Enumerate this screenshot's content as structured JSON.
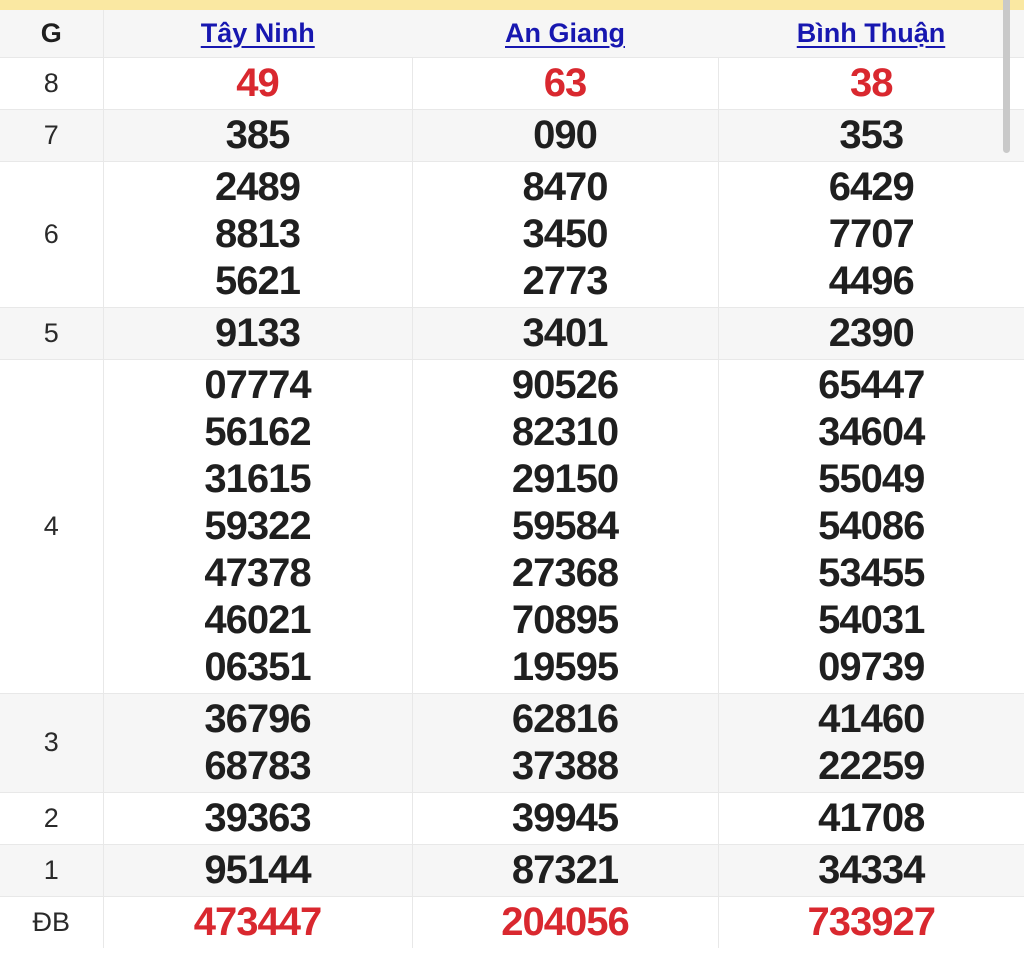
{
  "colors": {
    "banner_yellow": "#fae8a2",
    "link_blue": "#1717b0",
    "accent_red": "#d9282f",
    "text_black": "#1f1f1f",
    "row_alt_bg": "#f6f6f6",
    "border_gray": "#e8e8e8"
  },
  "table": {
    "corner_label": "G",
    "provinces": [
      "Tây Ninh",
      "An Giang",
      "Bình Thuận"
    ],
    "rows": [
      {
        "label": "8",
        "highlight": true,
        "values": [
          [
            "49"
          ],
          [
            "63"
          ],
          [
            "38"
          ]
        ]
      },
      {
        "label": "7",
        "highlight": false,
        "values": [
          [
            "385"
          ],
          [
            "090"
          ],
          [
            "353"
          ]
        ]
      },
      {
        "label": "6",
        "highlight": false,
        "values": [
          [
            "2489",
            "8813",
            "5621"
          ],
          [
            "8470",
            "3450",
            "2773"
          ],
          [
            "6429",
            "7707",
            "4496"
          ]
        ]
      },
      {
        "label": "5",
        "highlight": false,
        "values": [
          [
            "9133"
          ],
          [
            "3401"
          ],
          [
            "2390"
          ]
        ]
      },
      {
        "label": "4",
        "highlight": false,
        "values": [
          [
            "07774",
            "56162",
            "31615",
            "59322",
            "47378",
            "46021",
            "06351"
          ],
          [
            "90526",
            "82310",
            "29150",
            "59584",
            "27368",
            "70895",
            "19595"
          ],
          [
            "65447",
            "34604",
            "55049",
            "54086",
            "53455",
            "54031",
            "09739"
          ]
        ]
      },
      {
        "label": "3",
        "highlight": false,
        "values": [
          [
            "36796",
            "68783"
          ],
          [
            "62816",
            "37388"
          ],
          [
            "41460",
            "22259"
          ]
        ]
      },
      {
        "label": "2",
        "highlight": false,
        "values": [
          [
            "39363"
          ],
          [
            "39945"
          ],
          [
            "41708"
          ]
        ]
      },
      {
        "label": "1",
        "highlight": false,
        "values": [
          [
            "95144"
          ],
          [
            "87321"
          ],
          [
            "34334"
          ]
        ]
      },
      {
        "label": "ĐB",
        "highlight": true,
        "values": [
          [
            "473447"
          ],
          [
            "204056"
          ],
          [
            "733927"
          ]
        ]
      }
    ]
  }
}
